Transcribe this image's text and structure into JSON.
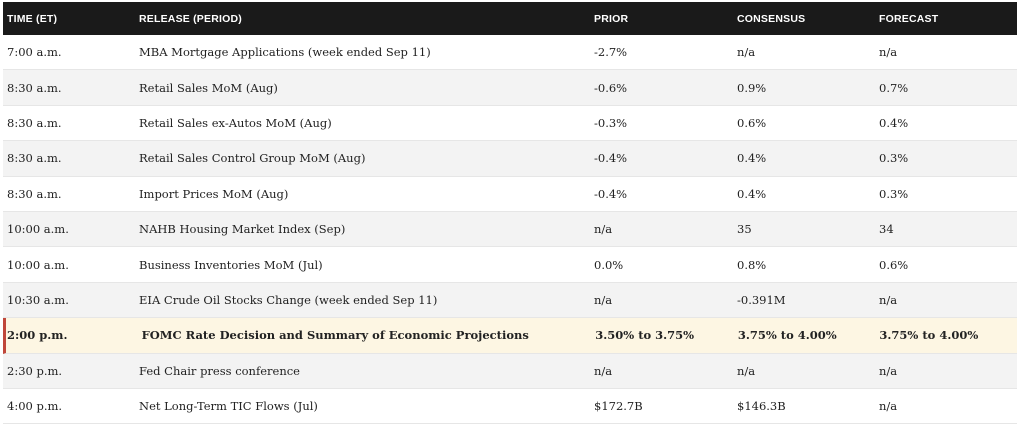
{
  "header": {
    "time": "TIME (ET)",
    "release": "RELEASE (PERIOD)",
    "prior": "PRIOR",
    "consensus": "CONSENSUS",
    "forecast": "FORECAST"
  },
  "rows": [
    {
      "time": "7:00 a.m.",
      "release": "MBA Mortgage Applications (week ended Sep 11)",
      "prior": "-2.7%",
      "consensus": "n/a",
      "forecast": "n/a"
    },
    {
      "time": "8:30 a.m.",
      "release": "Retail Sales MoM (Aug)",
      "prior": "-0.6%",
      "consensus": "0.9%",
      "forecast": "0.7%"
    },
    {
      "time": "8:30 a.m.",
      "release": "Retail Sales ex-Autos MoM (Aug)",
      "prior": "-0.3%",
      "consensus": "0.6%",
      "forecast": "0.4%"
    },
    {
      "time": "8:30 a.m.",
      "release": "Retail Sales Control Group MoM (Aug)",
      "prior": "-0.4%",
      "consensus": "0.4%",
      "forecast": "0.3%"
    },
    {
      "time": "8:30 a.m.",
      "release": "Import Prices MoM (Aug)",
      "prior": "-0.4%",
      "consensus": "0.4%",
      "forecast": "0.3%"
    },
    {
      "time": "10:00 a.m.",
      "release": "NAHB Housing Market Index (Sep)",
      "prior": "n/a",
      "consensus": "35",
      "forecast": "34"
    },
    {
      "time": "10:00 a.m.",
      "release": "Business Inventories MoM (Jul)",
      "prior": "0.0%",
      "consensus": "0.8%",
      "forecast": "0.6%"
    },
    {
      "time": "10:30 a.m.",
      "release": "EIA Crude Oil Stocks Change (week ended Sep 11)",
      "prior": "n/a",
      "consensus": "-0.391M",
      "forecast": "n/a"
    },
    {
      "time": "2:00 p.m.",
      "release": "FOMC Rate Decision and Summary of Economic Projections",
      "prior": "3.50% to 3.75%",
      "consensus": "3.75% to 4.00%",
      "forecast": "3.75% to 4.00%"
    },
    {
      "time": "2:30 p.m.",
      "release": "Fed Chair press conference",
      "prior": "n/a",
      "consensus": "n/a",
      "forecast": "n/a"
    },
    {
      "time": "4:00 p.m.",
      "release": "Net Long-Term TIC Flows (Jul)",
      "prior": "$172.7B",
      "consensus": "$146.3B",
      "forecast": "n/a"
    }
  ],
  "colors": {
    "header_bg": "#1a1a1a",
    "highlight_bg": "#fdf6e3",
    "highlight_accent": "#c0463a",
    "alt_row_bg": "#f3f3f3"
  }
}
